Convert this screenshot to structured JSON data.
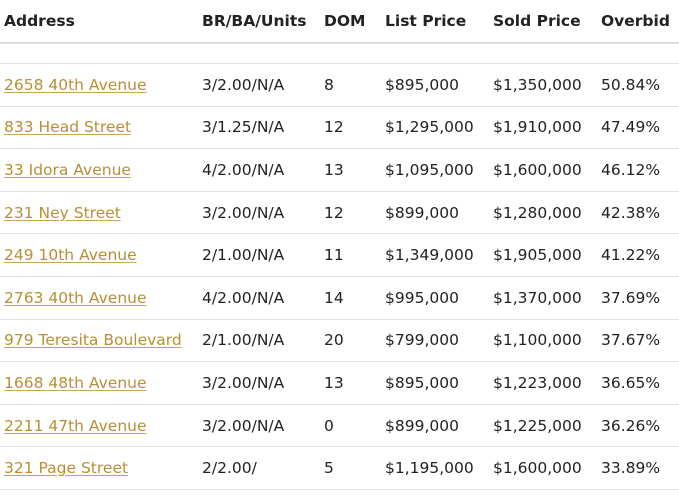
{
  "table": {
    "headers": [
      "Address",
      "BR/BA/Units",
      "DOM",
      "List Price",
      "Sold Price",
      "Overbid"
    ],
    "rows": [
      {
        "address": "2658 40th Avenue",
        "brba": "3/2.00/N/A",
        "dom": "8",
        "list_price": "$895,000",
        "sold_price": "$1,350,000",
        "overbid": "50.84%"
      },
      {
        "address": "833 Head Street",
        "brba": "3/1.25/N/A",
        "dom": "12",
        "list_price": "$1,295,000",
        "sold_price": "$1,910,000",
        "overbid": "47.49%"
      },
      {
        "address": "33 Idora Avenue",
        "brba": "4/2.00/N/A",
        "dom": "13",
        "list_price": "$1,095,000",
        "sold_price": "$1,600,000",
        "overbid": "46.12%"
      },
      {
        "address": "231 Ney Street",
        "brba": "3/2.00/N/A",
        "dom": "12",
        "list_price": "$899,000",
        "sold_price": "$1,280,000",
        "overbid": "42.38%"
      },
      {
        "address": "249 10th Avenue",
        "brba": "2/1.00/N/A",
        "dom": "11",
        "list_price": "$1,349,000",
        "sold_price": "$1,905,000",
        "overbid": "41.22%"
      },
      {
        "address": "2763 40th Avenue",
        "brba": "4/2.00/N/A",
        "dom": "14",
        "list_price": "$995,000",
        "sold_price": "$1,370,000",
        "overbid": "37.69%"
      },
      {
        "address": "979 Teresita Boulevard",
        "brba": "2/1.00/N/A",
        "dom": "20",
        "list_price": "$799,000",
        "sold_price": "$1,100,000",
        "overbid": "37.67%"
      },
      {
        "address": "1668 48th Avenue",
        "brba": "3/2.00/N/A",
        "dom": "13",
        "list_price": "$895,000",
        "sold_price": "$1,223,000",
        "overbid": "36.65%"
      },
      {
        "address": "2211 47th Avenue",
        "brba": "3/2.00/N/A",
        "dom": "0",
        "list_price": "$899,000",
        "sold_price": "$1,225,000",
        "overbid": "36.26%"
      },
      {
        "address": "321 Page Street",
        "brba": "2/2.00/",
        "dom": "5",
        "list_price": "$1,195,000",
        "sold_price": "$1,600,000",
        "overbid": "33.89%"
      }
    ]
  },
  "colors": {
    "link": "#b88f34",
    "text": "#222222",
    "rule": "#e2e2e2"
  }
}
